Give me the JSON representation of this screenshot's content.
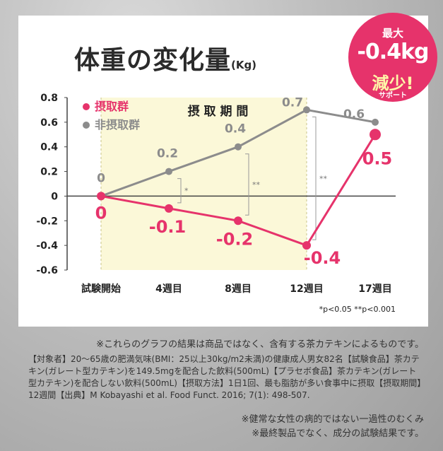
{
  "header": {
    "title": "体重の変化量",
    "unit": "(Kg)"
  },
  "badge": {
    "line1": "最大",
    "line2": "-0.4kg",
    "line3": "減少!",
    "line4": "サポート"
  },
  "chart_data": {
    "type": "line",
    "title": "体重の変化量",
    "ylabel": "(Kg)",
    "categories": [
      "試験開始",
      "4週目",
      "8週目",
      "12週目",
      "17週目"
    ],
    "ylim": [
      -0.6,
      0.8
    ],
    "yticks": [
      "0.8",
      "0.6",
      "0.4",
      "0.2",
      "0",
      "-0.2",
      "-0.4",
      "-0.6"
    ],
    "ytick_values": [
      0.8,
      0.6,
      0.4,
      0.2,
      0,
      -0.2,
      -0.4,
      -0.6
    ],
    "shaded_period_label": "摂 取 期 間",
    "series": [
      {
        "name": "摂取群",
        "color": "#e6336b",
        "values": [
          0,
          -0.1,
          -0.2,
          -0.4,
          0.5
        ],
        "labels": [
          "0",
          "-0.1",
          "-0.2",
          "-0.4",
          "0.5"
        ]
      },
      {
        "name": "非摂取群",
        "color": "#8c8c8c",
        "values": [
          0,
          0.2,
          0.4,
          0.7,
          0.6
        ],
        "labels": [
          "0",
          "0.2",
          "0.4",
          "0.7",
          "0.6"
        ]
      }
    ],
    "significance": [
      "*",
      "**",
      "**"
    ],
    "footnote": "*p<0.05   **p<0.001",
    "grid": false,
    "legend_position": "top-left"
  },
  "notes": {
    "line1": "※これらのグラフの結果は商品ではなく、含有する茶カテキンによるものです。",
    "line2": "【対象者】20～65歳の肥満気味(BMI：25以上30kg/m2未満)の健康成人男女82名【試験食品】茶カテキン(ガレート型カテキン)を149.5mgを配合した飲料(500mL)【プラセボ食品】茶カテキン(ガレート型カテキン)を配合しない飲料(500mL)【摂取方法】1日1回、最も脂肪が多い食事中に摂取【摂取期間】12週間【出典】M Kobayashi et al. Food Funct. 2016; 7(1): 498-507.",
    "line3": "※健常な女性の病的ではない一過性のむくみ",
    "line4": "※最終製品でなく、成分の試験結果です。"
  }
}
